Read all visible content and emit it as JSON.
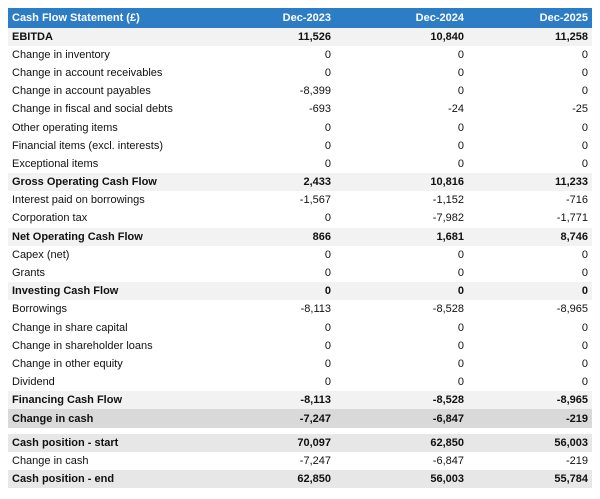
{
  "table": {
    "header": [
      "Cash Flow Statement (£)",
      "Dec-2023",
      "Dec-2024",
      "Dec-2025"
    ],
    "rows": [
      {
        "cells": [
          "EBITDA",
          "11,526",
          "10,840",
          "11,258"
        ],
        "bold": true
      },
      {
        "cells": [
          "Change in inventory",
          "0",
          "0",
          "0"
        ]
      },
      {
        "cells": [
          "Change in account receivables",
          "0",
          "0",
          "0"
        ]
      },
      {
        "cells": [
          "Change in account payables",
          "-8,399",
          "0",
          "0"
        ]
      },
      {
        "cells": [
          "Change in fiscal and social debts",
          "-693",
          "-24",
          "-25"
        ]
      },
      {
        "cells": [
          "Other operating items",
          "0",
          "0",
          "0"
        ]
      },
      {
        "cells": [
          "Financial items (excl. interests)",
          "0",
          "0",
          "0"
        ]
      },
      {
        "cells": [
          "Exceptional items",
          "0",
          "0",
          "0"
        ]
      },
      {
        "cells": [
          "Gross Operating Cash Flow",
          "2,433",
          "10,816",
          "11,233"
        ],
        "bold": true
      },
      {
        "cells": [
          "Interest paid on borrowings",
          "-1,567",
          "-1,152",
          "-716"
        ]
      },
      {
        "cells": [
          "Corporation tax",
          "0",
          "-7,982",
          "-1,771"
        ]
      },
      {
        "cells": [
          "Net Operating Cash Flow",
          "866",
          "1,681",
          "8,746"
        ],
        "bold": true
      },
      {
        "cells": [
          "Capex (net)",
          "0",
          "0",
          "0"
        ]
      },
      {
        "cells": [
          "Grants",
          "0",
          "0",
          "0"
        ]
      },
      {
        "cells": [
          "Investing Cash Flow",
          "0",
          "0",
          "0"
        ],
        "bold": true
      },
      {
        "cells": [
          "Borrowings",
          "-8,113",
          "-8,528",
          "-8,965"
        ]
      },
      {
        "cells": [
          "Change in share capital",
          "0",
          "0",
          "0"
        ]
      },
      {
        "cells": [
          "Change in shareholder loans",
          "0",
          "0",
          "0"
        ]
      },
      {
        "cells": [
          "Change in other equity",
          "0",
          "0",
          "0"
        ]
      },
      {
        "cells": [
          "Dividend",
          "0",
          "0",
          "0"
        ]
      },
      {
        "cells": [
          "Financing Cash Flow",
          "-8,113",
          "-8,528",
          "-8,965"
        ],
        "bold": true
      },
      {
        "cells": [
          "Change in cash",
          "-7,247",
          "-6,847",
          "-219"
        ],
        "bold": true,
        "dark": true,
        "gap_after": true
      },
      {
        "cells": [
          "Cash position - start",
          "70,097",
          "62,850",
          "56,003"
        ],
        "bold": true,
        "mid": true
      },
      {
        "cells": [
          "Change in cash",
          "-7,247",
          "-6,847",
          "-219"
        ]
      },
      {
        "cells": [
          "Cash position - end",
          "62,850",
          "56,003",
          "55,784"
        ],
        "bold": true,
        "mid": true
      }
    ]
  }
}
